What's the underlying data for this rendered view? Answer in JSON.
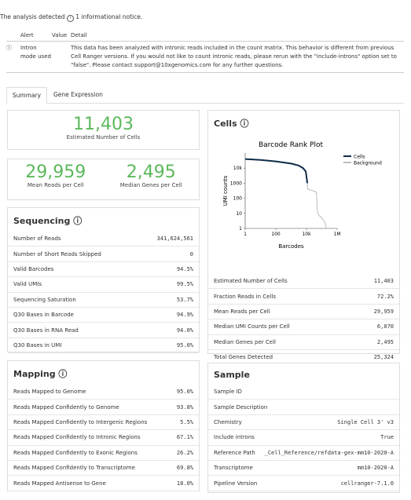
{
  "notice": {
    "intro": "The analysis detected",
    "count": "1 informational notice."
  },
  "alerts": {
    "headers": [
      "Alert",
      "Value",
      "Detail"
    ],
    "rows": [
      {
        "alert": "Intron mode used",
        "detail": "This data has been analyzed with intronic reads included in the count matrix. This behavior is different from previous Cell Ranger versions. If you would not like to count intronic reads, please rerun with the \"include-introns\" option set to \"false\". Please contact support@10xgenomics.com for any further questions."
      }
    ]
  },
  "tabs": [
    "Summary",
    "Gene Expression"
  ],
  "highlights": [
    {
      "value": "11,403",
      "label": "Estimated Number of Cells"
    },
    {
      "value": "29,959",
      "label": "Mean Reads per Cell"
    },
    {
      "value": "2,495",
      "label": "Median Genes per Cell"
    }
  ],
  "sequencing": {
    "title": "Sequencing",
    "rows": [
      [
        "Number of Reads",
        "341,624,561"
      ],
      [
        "Number of Short Reads Skipped",
        "0"
      ],
      [
        "Valid Barcodes",
        "94.5%"
      ],
      [
        "Valid UMIs",
        "99.5%"
      ],
      [
        "Sequencing Saturation",
        "53.7%"
      ],
      [
        "Q30 Bases in Barcode",
        "94.9%"
      ],
      [
        "Q30 Bases in RNA Read",
        "94.0%"
      ],
      [
        "Q30 Bases in UMI",
        "95.0%"
      ]
    ]
  },
  "mapping": {
    "title": "Mapping",
    "rows": [
      [
        "Reads Mapped to Genome",
        "95.0%"
      ],
      [
        "Reads Mapped Confidently to Genome",
        "93.8%"
      ],
      [
        "Reads Mapped Confidently to Intergenic Regions",
        "5.5%"
      ],
      [
        "Reads Mapped Confidently to Intronic Regions",
        "67.1%"
      ],
      [
        "Reads Mapped Confidently to Exonic Regions",
        "26.2%"
      ],
      [
        "Reads Mapped Confidently to Transcriptome",
        "69.8%"
      ],
      [
        "Reads Mapped Antisense to Gene",
        "18.0%"
      ]
    ]
  },
  "cells": {
    "title": "Cells",
    "chart_data": {
      "type": "line",
      "title": "Barcode Rank Plot",
      "x_label": "Barcodes",
      "y_label": "UMI counts",
      "log_x": true,
      "log_y": true,
      "xlim": [
        1,
        1000000
      ],
      "ylim": [
        1,
        100000
      ],
      "xticks": [
        1,
        100,
        {
          "value": 10000,
          "label": "10k"
        },
        {
          "value": 1000000,
          "label": "1M"
        }
      ],
      "yticks": [
        1,
        10,
        100,
        1000,
        {
          "value": 10000,
          "label": "10k"
        }
      ],
      "series": [
        {
          "name": "Cells",
          "color": "#0e2c48",
          "x": [
            1,
            10,
            100,
            1000,
            3000,
            6000,
            9000,
            11403
          ],
          "values": [
            40000,
            35000,
            28000,
            20000,
            15000,
            10000,
            6000,
            1000
          ]
        },
        {
          "name": "Background",
          "color": "#bcbcbc",
          "x": [
            11403,
            12000,
            20000,
            30000,
            45000,
            50000,
            60000,
            100000,
            150000,
            200000
          ],
          "values": [
            1000,
            400,
            350,
            300,
            250,
            20,
            8,
            5,
            3,
            1
          ]
        }
      ]
    },
    "rows": [
      [
        "Estimated Number of Cells",
        "11,403"
      ],
      [
        "Fraction Reads in Cells",
        "72.2%"
      ],
      [
        "Mean Reads per Cell",
        "29,959"
      ],
      [
        "Median UMI Counts per Cell",
        "6,070"
      ],
      [
        "Median Genes per Cell",
        "2,495"
      ],
      [
        "Total Genes Detected",
        "25,324"
      ]
    ]
  },
  "sample": {
    "title": "Sample",
    "rows": [
      [
        "Sample ID"
      ],
      [
        "Sample Description"
      ],
      [
        "Chemistry",
        "Single Cell 3' v3"
      ],
      [
        "Include introns",
        "True"
      ],
      [
        "Reference Path",
        "_Cell_Reference/refdata-gex-mm10-2020-A"
      ],
      [
        "Transcriptome",
        "mm10-2020-A"
      ],
      [
        "Pipeline Version",
        "cellranger-7.1.0"
      ]
    ]
  }
}
